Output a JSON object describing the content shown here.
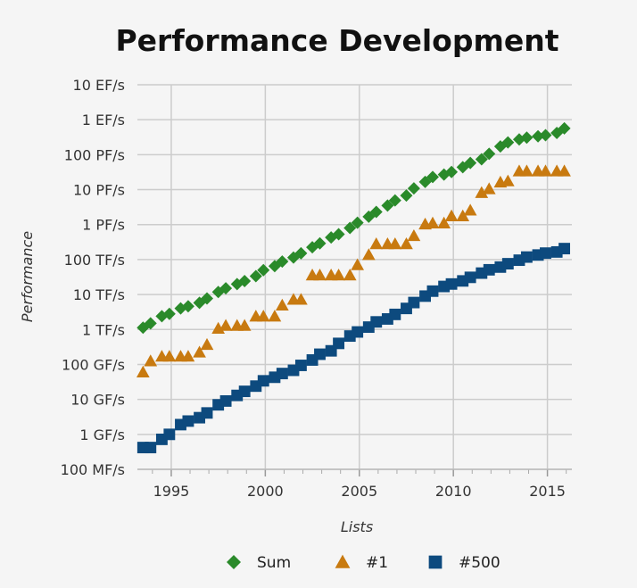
{
  "chart_data": {
    "type": "scatter",
    "title": "Performance Development",
    "xlabel": "Lists",
    "ylabel": "Performance",
    "y_scale": "log",
    "xlim": [
      1993.2,
      2016.3
    ],
    "ylim": [
      100000000.0,
      1e+19
    ],
    "x_ticks": [
      {
        "value": 1995,
        "label": "1995"
      },
      {
        "value": 2000,
        "label": "2000"
      },
      {
        "value": 2005,
        "label": "2005"
      },
      {
        "value": 2010,
        "label": "2010"
      },
      {
        "value": 2015,
        "label": "2015"
      }
    ],
    "y_ticks": [
      {
        "value": 1e+19,
        "label": "10 EF/s"
      },
      {
        "value": 1e+18,
        "label": "1 EF/s"
      },
      {
        "value": 1e+17,
        "label": "100 PF/s"
      },
      {
        "value": 1e+16,
        "label": "10 PF/s"
      },
      {
        "value": 1000000000000000.0,
        "label": "1 PF/s"
      },
      {
        "value": 100000000000000.0,
        "label": "100 TF/s"
      },
      {
        "value": 10000000000000.0,
        "label": "10 TF/s"
      },
      {
        "value": 1000000000000.0,
        "label": "1 TF/s"
      },
      {
        "value": 100000000000.0,
        "label": "100 GF/s"
      },
      {
        "value": 10000000000.0,
        "label": "10 GF/s"
      },
      {
        "value": 1000000000.0,
        "label": "1 GF/s"
      },
      {
        "value": 100000000.0,
        "label": "100 MF/s"
      }
    ],
    "grid": true,
    "legend_position": "bottom",
    "x": [
      1993.5,
      1993.9,
      1994.5,
      1994.9,
      1995.5,
      1995.9,
      1996.5,
      1996.9,
      1997.5,
      1997.9,
      1998.5,
      1998.9,
      1999.5,
      1999.9,
      2000.5,
      2000.9,
      2001.5,
      2001.9,
      2002.5,
      2002.9,
      2003.5,
      2003.9,
      2004.5,
      2004.9,
      2005.5,
      2005.9,
      2006.5,
      2006.9,
      2007.5,
      2007.9,
      2008.5,
      2008.9,
      2009.5,
      2009.9,
      2010.5,
      2010.9,
      2011.5,
      2011.9,
      2012.5,
      2012.9,
      2013.5,
      2013.9,
      2014.5,
      2014.9,
      2015.5,
      2015.9
    ],
    "series": [
      {
        "name": "Sum",
        "marker": "diamond",
        "color": "#2a8a2a",
        "values": [
          1130000000000.0,
          1500000000000.0,
          2400000000000.0,
          2800000000000.0,
          4000000000000.0,
          4600000000000.0,
          5800000000000.0,
          7700000000000.0,
          11800000000000.0,
          15100000000000.0,
          19900000000000.0,
          24300000000000.0,
          33600000000000.0,
          50000000000000.0,
          65000000000000.0,
          88000000000000.0,
          114000000000000.0,
          151000000000000.0,
          225000000000000.0,
          290000000000000.0,
          430000000000000.0,
          530000000000000.0,
          800000000000000.0,
          1130000000000000.0,
          1680000000000000.0,
          2300000000000000.0,
          3500000000000000.0,
          4900000000000000.0,
          6800000000000000.0,
          1.09e+16,
          1.66e+16,
          2.3e+16,
          2.7e+16,
          3.2e+16,
          4.4e+16,
          5.8e+16,
          7.4e+16,
          1.06e+17,
          1.72e+17,
          2.25e+17,
          2.74e+17,
          3.08e+17,
          3.36e+17,
          3.62e+17,
          4.2e+17,
          5.66e+17
        ]
      },
      {
        "name": "#1",
        "marker": "triangle",
        "color": "#c87a10",
        "values": [
          60000000000.0,
          125000000000.0,
          170000000000.0,
          170000000000.0,
          170000000000.0,
          170000000000.0,
          223000000000.0,
          368000000000.0,
          1070000000000.0,
          1300000000000.0,
          1300000000000.0,
          1300000000000.0,
          2380000000000.0,
          2380000000000.0,
          2380000000000.0,
          4940000000000.0,
          7200000000000.0,
          7200000000000.0,
          35900000000000.0,
          35900000000000.0,
          35900000000000.0,
          35900000000000.0,
          35900000000000.0,
          70700000000000.0,
          137000000000000.0,
          281000000000000.0,
          281000000000000.0,
          281000000000000.0,
          281000000000000.0,
          478000000000000.0,
          1030000000000000.0,
          1100000000000000.0,
          1100000000000000.0,
          1760000000000000.0,
          1760000000000000.0,
          2570000000000000.0,
          8160000000000000.0,
          1.05e+16,
          1.63e+16,
          1.76e+16,
          3.39e+16,
          3.39e+16,
          3.39e+16,
          3.39e+16,
          3.39e+16,
          3.39e+16
        ]
      },
      {
        "name": "#500",
        "marker": "square",
        "color": "#0d4a7e",
        "values": [
          420000000.0,
          420000000.0,
          720000000.0,
          1000000000.0,
          1900000000.0,
          2400000000.0,
          3000000000.0,
          4100000000.0,
          7000000000.0,
          9000000000.0,
          13000000000.0,
          17000000000.0,
          24000000000.0,
          34000000000.0,
          43000000000.0,
          55000000000.0,
          68000000000.0,
          94000000000.0,
          134000000000.0,
          196000000000.0,
          245000000000.0,
          400000000000.0,
          650000000000.0,
          850000000000.0,
          1170000000000.0,
          1650000000000.0,
          2000000000000.0,
          2700000000000.0,
          4000000000000.0,
          5900000000000.0,
          9000000000000.0,
          12500000000000.0,
          17000000000000.0,
          20000000000000.0,
          24500000000000.0,
          31000000000000.0,
          41000000000000.0,
          51000000000000.0,
          61000000000000.0,
          76000000000000.0,
          96000000000000.0,
          118000000000000.0,
          135000000000000.0,
          153000000000000.0,
          165000000000000.0,
          206000000000000.0
        ]
      }
    ]
  }
}
